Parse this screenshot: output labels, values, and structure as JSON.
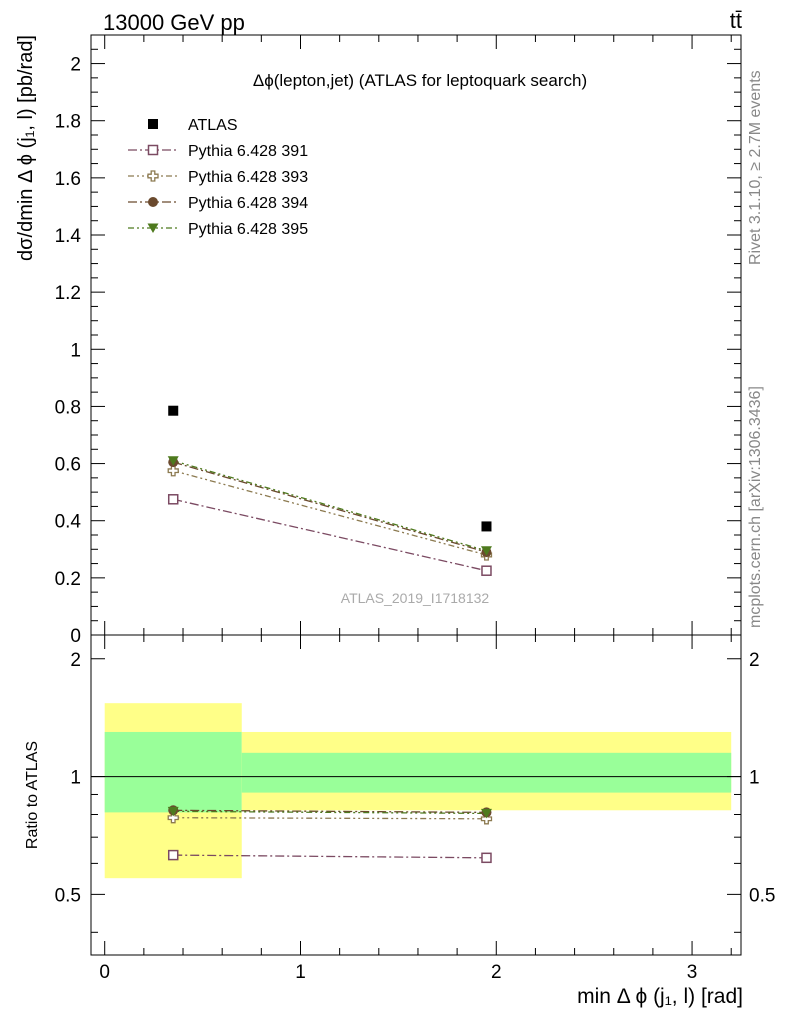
{
  "header": {
    "left": "13000 GeV pp",
    "right": "tt̄"
  },
  "side_labels": {
    "rivet": "Rivet 3.1.10, ≥ 2.7M events",
    "mcplots": "mcplots.cern.ch [arXiv:1306.3436]"
  },
  "chart_data": [
    {
      "type": "scatter",
      "title": "Δϕ(lepton,jet) (ATLAS for leptoquark search)",
      "watermark": "ATLAS_2019_I1718132",
      "xlabel": "min Δ ϕ (j₁, l) [rad]",
      "ylabel": "dσ/dmin Δ ϕ (j₁, l) [pb/rad]",
      "xlim": [
        -0.07,
        3.25
      ],
      "ylim": [
        0,
        2.1
      ],
      "y_ticks": [
        0,
        0.2,
        0.4,
        0.6,
        0.8,
        1,
        1.2,
        1.4,
        1.6,
        1.8,
        2
      ],
      "y_tick_labels": [
        "0",
        "0.2",
        "0.4",
        "0.6",
        "0.8",
        "1",
        "1.2",
        "1.4",
        "1.6",
        "1.8",
        "2"
      ],
      "legend_position": "top-left",
      "series": [
        {
          "name": "ATLAS",
          "x": [
            0.35,
            1.95
          ],
          "values": [
            0.785,
            0.38
          ],
          "marker": "square-filled",
          "color": "#000000",
          "line": "none"
        },
        {
          "name": "Pythia 6.428 391",
          "x": [
            0.35,
            1.95
          ],
          "values": [
            0.475,
            0.225
          ],
          "marker": "square-open",
          "color": "#7b4a62",
          "line": "dash-dot"
        },
        {
          "name": "Pythia 6.428 393",
          "x": [
            0.35,
            1.95
          ],
          "values": [
            0.575,
            0.28
          ],
          "marker": "cross-open",
          "color": "#8c7a50",
          "line": "dash-dot-dot"
        },
        {
          "name": "Pythia 6.428 394",
          "x": [
            0.35,
            1.95
          ],
          "values": [
            0.605,
            0.29
          ],
          "marker": "circle-filled",
          "color": "#6b4a2e",
          "line": "dash-dot"
        },
        {
          "name": "Pythia 6.428 395",
          "x": [
            0.35,
            1.95
          ],
          "values": [
            0.61,
            0.295
          ],
          "marker": "triangle-down-filled",
          "color": "#4e7a1e",
          "line": "dash-dot-dot"
        }
      ]
    },
    {
      "type": "scatter",
      "ylabel": "Ratio to ATLAS",
      "xlabel": "min Δ ϕ (j₁, l) [rad]",
      "xlim": [
        -0.07,
        3.25
      ],
      "ylim": [
        0.35,
        2.3
      ],
      "x_ticks": [
        0,
        1,
        2,
        3
      ],
      "x_tick_labels": [
        "0",
        "1",
        "2",
        "3"
      ],
      "y_ticks": [
        0.5,
        1,
        2
      ],
      "y_tick_labels": [
        "0.5",
        "1",
        "2"
      ],
      "reference_line": 1,
      "bands": [
        {
          "x": [
            0,
            0.7
          ],
          "inner": [
            0.81,
            1.3
          ],
          "outer": [
            0.55,
            1.54
          ]
        },
        {
          "x": [
            0.7,
            3.2
          ],
          "inner": [
            0.91,
            1.15
          ],
          "outer": [
            0.82,
            1.3
          ]
        }
      ],
      "band_colors": {
        "inner": "#99ff99",
        "outer": "#ffff88"
      },
      "series": [
        {
          "name": "Pythia 6.428 391",
          "x": [
            0.35,
            1.95
          ],
          "values": [
            0.63,
            0.62
          ]
        },
        {
          "name": "Pythia 6.428 393",
          "x": [
            0.35,
            1.95
          ],
          "values": [
            0.785,
            0.78
          ]
        },
        {
          "name": "Pythia 6.428 394",
          "x": [
            0.35,
            1.95
          ],
          "values": [
            0.82,
            0.81
          ]
        },
        {
          "name": "Pythia 6.428 395",
          "x": [
            0.35,
            1.95
          ],
          "values": [
            0.815,
            0.805
          ]
        }
      ]
    }
  ]
}
